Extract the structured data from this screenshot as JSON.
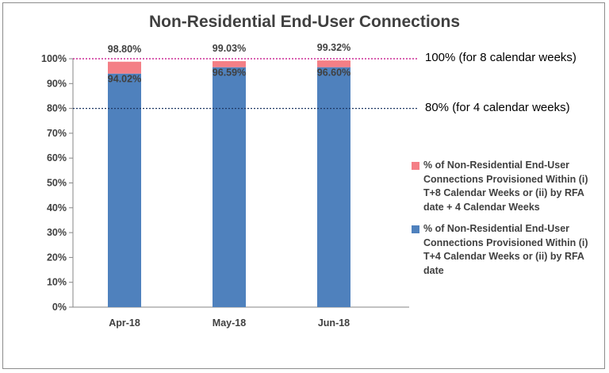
{
  "chart_data": {
    "type": "bar",
    "stacked": true,
    "title": "Non-Residential End-User Connections",
    "xlabel": "",
    "ylabel": "",
    "categories": [
      "Apr-18",
      "May-18",
      "Jun-18"
    ],
    "ylim": [
      0,
      100
    ],
    "yticks": [
      "0%",
      "10%",
      "20%",
      "30%",
      "40%",
      "50%",
      "60%",
      "70%",
      "80%",
      "90%",
      "100%"
    ],
    "series": [
      {
        "name": "% of Non-Residential End-User Connections Provisioned Within (i) T+4 Calendar Weeks or (ii) by RFA date",
        "values": [
          94.02,
          96.59,
          96.6
        ],
        "labels": [
          "94.02%",
          "96.59%",
          "96.60%"
        ],
        "color": "#4f81bd"
      },
      {
        "name": "% of Non-Residential End-User Connections Provisioned Within (i) T+8 Calendar Weeks or (ii) by RFA date + 4 Calendar Weeks",
        "cumulative_values": [
          98.8,
          99.03,
          99.32
        ],
        "labels": [
          "98.80%",
          "99.03%",
          "99.32%"
        ],
        "color": "#f47f86"
      }
    ],
    "reference_lines": [
      {
        "value": 100,
        "label": "100% (for 8 calendar weeks)",
        "color": "#c00080"
      },
      {
        "value": 80,
        "label": "80% (for 4 calendar weeks)",
        "color": "#1f3864"
      }
    ],
    "legend_position": "right",
    "grid": false
  }
}
